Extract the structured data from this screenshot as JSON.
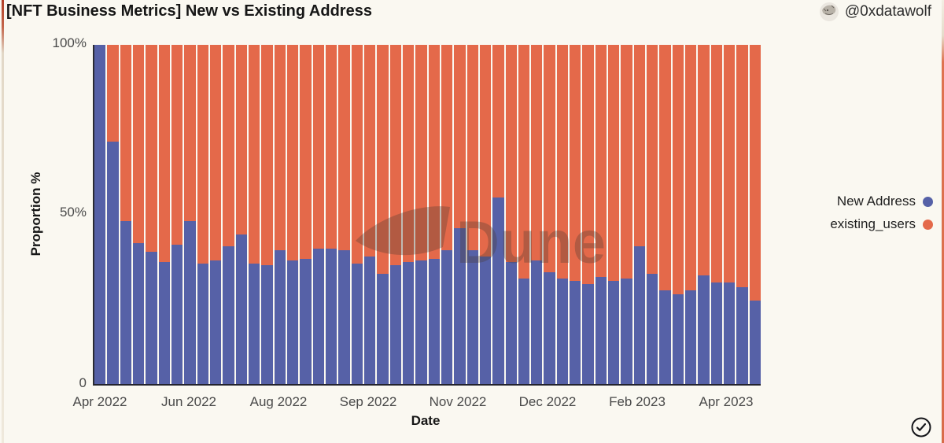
{
  "page": {
    "title": "[NFT Business Metrics] New vs Existing Address",
    "author_handle": "@0xdatawolf",
    "watermark": "Dune"
  },
  "colors": {
    "new_address": "#5661A7",
    "existing_users": "#E4694A",
    "page_background": "#FAF8F1",
    "axis_line": "#2B2B33",
    "tick_text": "#4A4A4A",
    "title_text": "#161616",
    "left_edge_accent": "#B33F27",
    "right_edge_accent": "#D96C4A"
  },
  "chart_data": {
    "type": "bar",
    "stacked": true,
    "normalized_percent": true,
    "title": "[NFT Business Metrics] New vs Existing Address",
    "xlabel": "Date",
    "ylabel": "Proportion %",
    "ylim": [
      0,
      100
    ],
    "y_ticks": [
      "100%",
      "50%",
      "0"
    ],
    "x_tick_labels": [
      "Apr 2022",
      "Jun 2022",
      "Aug 2022",
      "Sep 2022",
      "Nov 2022",
      "Dec 2022",
      "Feb 2023",
      "Apr 2023"
    ],
    "x_unit": "week",
    "bar_count": 52,
    "grid": false,
    "legend_position": "right",
    "series": [
      {
        "name": "New Address",
        "color": "#5661A7",
        "values": [
          100,
          71.5,
          48,
          41.5,
          39,
          36,
          41,
          48,
          35.5,
          36.5,
          40.5,
          44,
          35.5,
          35,
          39.5,
          36.5,
          37,
          40,
          40,
          39.5,
          35.5,
          37.5,
          32.5,
          35,
          36,
          36.5,
          37,
          39.5,
          46,
          39.5,
          37.5,
          55,
          36,
          31,
          36.5,
          33,
          31,
          30.5,
          29.5,
          31.5,
          30.5,
          31,
          40.5,
          32.5,
          27.5,
          26.5,
          27.5,
          32,
          30,
          30,
          28.5,
          24.5
        ]
      },
      {
        "name": "existing_users",
        "color": "#E4694A",
        "values": [
          0,
          28.5,
          52,
          58.5,
          61,
          64,
          59,
          52,
          64.5,
          63.5,
          59.5,
          56,
          64.5,
          65,
          60.5,
          63.5,
          63,
          60,
          60,
          60.5,
          64.5,
          62.5,
          67.5,
          65,
          64,
          63.5,
          63,
          60.5,
          54,
          60.5,
          62.5,
          45,
          64,
          69,
          63.5,
          67,
          69,
          69.5,
          70.5,
          68.5,
          69.5,
          69,
          59.5,
          67.5,
          72.5,
          73.5,
          72.5,
          68,
          70,
          70,
          71.5,
          75.5
        ]
      }
    ]
  }
}
